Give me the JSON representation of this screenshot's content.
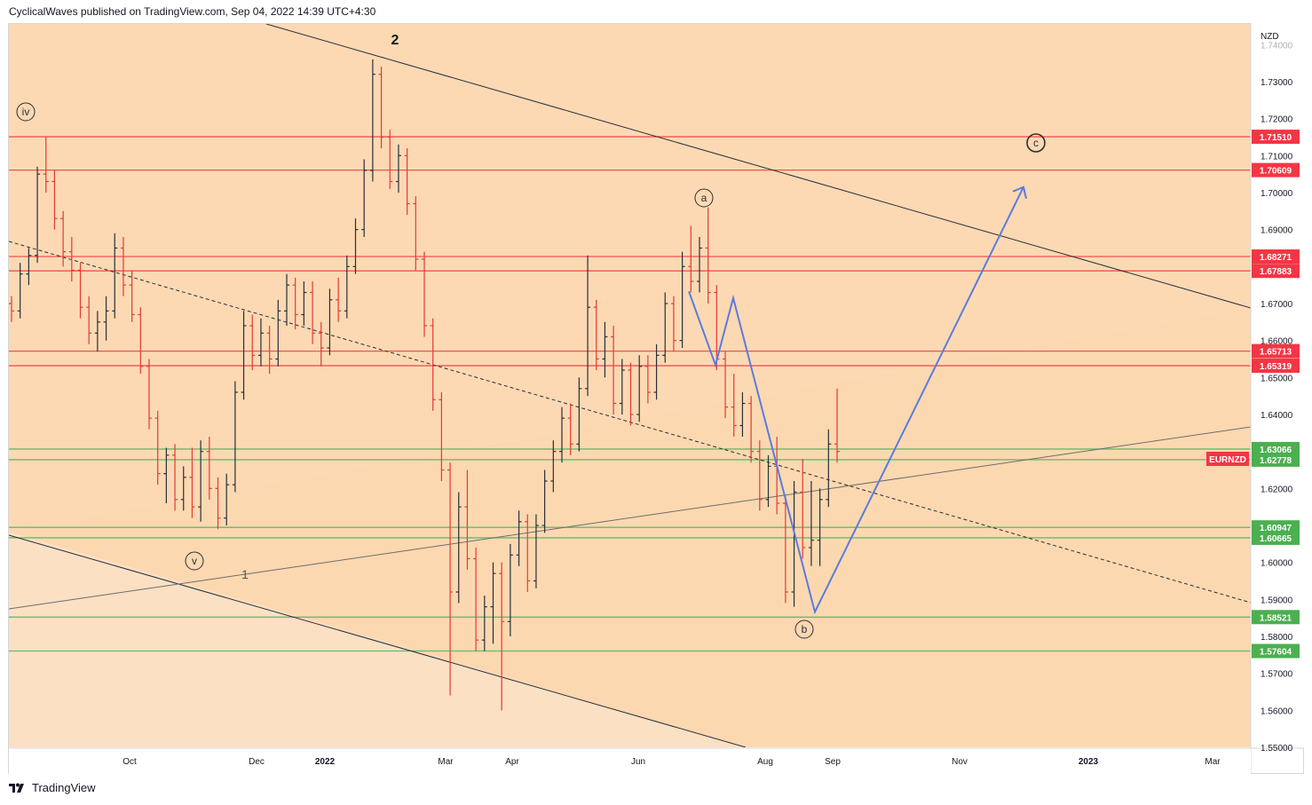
{
  "header": {
    "published": "CyclicalWaves published on TradingView.com, Sep 04, 2022 14:39 UTC+4:30"
  },
  "footer": {
    "brand": "TradingView",
    "logo_icon": "tradingview-logo-icon"
  },
  "chart_data": {
    "type": "ohlc",
    "symbol": "EURNZD",
    "currency": "NZD",
    "title": "",
    "xlabel": "",
    "ylabel": "",
    "ylim": [
      1.55,
      1.74
    ],
    "x_ticks": [
      "Oct",
      "Dec",
      "2022",
      "Mar",
      "Apr",
      "Jun",
      "Aug",
      "Sep",
      "Nov",
      "2023",
      "Mar"
    ],
    "y_ticks": [
      "1.74000",
      "1.73000",
      "1.72000",
      "1.71000",
      "1.70000",
      "1.69000",
      "1.68000",
      "1.67000",
      "1.66000",
      "1.65000",
      "1.64000",
      "1.63000",
      "1.62000",
      "1.61000",
      "1.60000",
      "1.59000",
      "1.58000",
      "1.57000",
      "1.56000",
      "1.55000"
    ],
    "colors": {
      "background": "#fcd9b3",
      "up_bar": "#2a2e39",
      "down_bar": "#e53935",
      "resistance": "#ef5350",
      "support": "#66bb6a",
      "projection": "#5b7be0"
    },
    "resistance_levels": [
      {
        "label": "1.71510",
        "value": 1.7151
      },
      {
        "label": "1.70609",
        "value": 1.70609
      },
      {
        "label": "1.68271",
        "value": 1.68271
      },
      {
        "label": "1.67883",
        "value": 1.67883
      },
      {
        "label": "1.65713",
        "value": 1.65713
      },
      {
        "label": "1.65319",
        "value": 1.65319
      }
    ],
    "support_levels": [
      {
        "label": "1.63066",
        "value": 1.63066
      },
      {
        "label": "1.62778",
        "value": 1.62778
      },
      {
        "label": "1.60947",
        "value": 1.60947
      },
      {
        "label": "1.60665",
        "value": 1.60665
      },
      {
        "label": "1.58521",
        "value": 1.58521
      },
      {
        "label": "1.57604",
        "value": 1.57604
      }
    ],
    "current_price_label": "EURNZD",
    "wave_labels": [
      {
        "text": "2",
        "style": "plain"
      },
      {
        "text": "iv",
        "style": "circle"
      },
      {
        "text": "v",
        "style": "circle"
      },
      {
        "text": "1",
        "style": "plain"
      },
      {
        "text": "a",
        "style": "circle"
      },
      {
        "text": "b",
        "style": "circle"
      },
      {
        "text": "c",
        "style": "circle-bold"
      }
    ],
    "projection_path": [
      1.6733,
      1.6534,
      1.6715,
      1.5866,
      1.7015
    ],
    "bars": [
      [
        1.67,
        1.672,
        1.665,
        1.668
      ],
      [
        1.668,
        1.681,
        1.666,
        1.678
      ],
      [
        1.678,
        1.685,
        1.675,
        1.683
      ],
      [
        1.683,
        1.707,
        1.681,
        1.705
      ],
      [
        1.705,
        1.715,
        1.7,
        1.703
      ],
      [
        1.703,
        1.706,
        1.69,
        1.693
      ],
      [
        1.693,
        1.695,
        1.68,
        1.684
      ],
      [
        1.684,
        1.688,
        1.676,
        1.679
      ],
      [
        1.679,
        1.681,
        1.666,
        1.669
      ],
      [
        1.669,
        1.672,
        1.659,
        1.662
      ],
      [
        1.662,
        1.668,
        1.657,
        1.665
      ],
      [
        1.665,
        1.672,
        1.66,
        1.668
      ],
      [
        1.668,
        1.689,
        1.666,
        1.685
      ],
      [
        1.685,
        1.688,
        1.672,
        1.675
      ],
      [
        1.675,
        1.679,
        1.665,
        1.667
      ],
      [
        1.667,
        1.669,
        1.651,
        1.653
      ],
      [
        1.653,
        1.655,
        1.636,
        1.639
      ],
      [
        1.639,
        1.641,
        1.621,
        1.624
      ],
      [
        1.624,
        1.631,
        1.616,
        1.629
      ],
      [
        1.629,
        1.632,
        1.614,
        1.617
      ],
      [
        1.617,
        1.626,
        1.614,
        1.623
      ],
      [
        1.623,
        1.631,
        1.612,
        1.615
      ],
      [
        1.615,
        1.633,
        1.611,
        1.63
      ],
      [
        1.63,
        1.634,
        1.617,
        1.62
      ],
      [
        1.62,
        1.623,
        1.609,
        1.612
      ],
      [
        1.612,
        1.624,
        1.61,
        1.621
      ],
      [
        1.621,
        1.649,
        1.619,
        1.646
      ],
      [
        1.646,
        1.668,
        1.644,
        1.664
      ],
      [
        1.664,
        1.667,
        1.652,
        1.656
      ],
      [
        1.656,
        1.666,
        1.653,
        1.662
      ],
      [
        1.662,
        1.664,
        1.651,
        1.655
      ],
      [
        1.655,
        1.671,
        1.653,
        1.668
      ],
      [
        1.668,
        1.678,
        1.664,
        1.675
      ],
      [
        1.675,
        1.677,
        1.663,
        1.667
      ],
      [
        1.667,
        1.676,
        1.664,
        1.673
      ],
      [
        1.673,
        1.676,
        1.659,
        1.662
      ],
      [
        1.662,
        1.665,
        1.653,
        1.658
      ],
      [
        1.658,
        1.674,
        1.656,
        1.671
      ],
      [
        1.671,
        1.677,
        1.665,
        1.668
      ],
      [
        1.668,
        1.683,
        1.666,
        1.68
      ],
      [
        1.68,
        1.693,
        1.678,
        1.69
      ],
      [
        1.69,
        1.709,
        1.688,
        1.706
      ],
      [
        1.706,
        1.736,
        1.703,
        1.732
      ],
      [
        1.732,
        1.734,
        1.712,
        1.715
      ],
      [
        1.715,
        1.717,
        1.701,
        1.703
      ],
      [
        1.703,
        1.713,
        1.7,
        1.71
      ],
      [
        1.71,
        1.712,
        1.694,
        1.697
      ],
      [
        1.697,
        1.699,
        1.679,
        1.682
      ],
      [
        1.682,
        1.684,
        1.661,
        1.664
      ],
      [
        1.664,
        1.666,
        1.641,
        1.644
      ],
      [
        1.644,
        1.646,
        1.622,
        1.625
      ],
      [
        1.625,
        1.627,
        1.564,
        1.592
      ],
      [
        1.592,
        1.619,
        1.589,
        1.615
      ],
      [
        1.615,
        1.625,
        1.598,
        1.601
      ],
      [
        1.601,
        1.604,
        1.576,
        1.579
      ],
      [
        1.579,
        1.591,
        1.576,
        1.588
      ],
      [
        1.588,
        1.6,
        1.578,
        1.597
      ],
      [
        1.597,
        1.6,
        1.56,
        1.584
      ],
      [
        1.584,
        1.605,
        1.58,
        1.602
      ],
      [
        1.602,
        1.614,
        1.599,
        1.611
      ],
      [
        1.611,
        1.613,
        1.592,
        1.595
      ],
      [
        1.595,
        1.613,
        1.593,
        1.61
      ],
      [
        1.61,
        1.625,
        1.608,
        1.622
      ],
      [
        1.622,
        1.633,
        1.619,
        1.63
      ],
      [
        1.63,
        1.642,
        1.627,
        1.639
      ],
      [
        1.639,
        1.643,
        1.629,
        1.632
      ],
      [
        1.632,
        1.65,
        1.63,
        1.647
      ],
      [
        1.647,
        1.683,
        1.645,
        1.669
      ],
      [
        1.669,
        1.671,
        1.652,
        1.655
      ],
      [
        1.655,
        1.665,
        1.65,
        1.661
      ],
      [
        1.661,
        1.664,
        1.64,
        1.643
      ],
      [
        1.643,
        1.655,
        1.64,
        1.652
      ],
      [
        1.652,
        1.654,
        1.637,
        1.64
      ],
      [
        1.64,
        1.656,
        1.638,
        1.653
      ],
      [
        1.653,
        1.656,
        1.643,
        1.646
      ],
      [
        1.646,
        1.659,
        1.644,
        1.656
      ],
      [
        1.656,
        1.673,
        1.654,
        1.67
      ],
      [
        1.67,
        1.672,
        1.657,
        1.66
      ],
      [
        1.66,
        1.684,
        1.658,
        1.68
      ],
      [
        1.68,
        1.691,
        1.673,
        1.676
      ],
      [
        1.676,
        1.688,
        1.673,
        1.685
      ],
      [
        1.685,
        1.696,
        1.67,
        1.673
      ],
      [
        1.673,
        1.675,
        1.652,
        1.655
      ],
      [
        1.655,
        1.657,
        1.639,
        1.642
      ],
      [
        1.642,
        1.651,
        1.634,
        1.637
      ],
      [
        1.637,
        1.646,
        1.634,
        1.643
      ],
      [
        1.643,
        1.645,
        1.627,
        1.63
      ],
      [
        1.63,
        1.633,
        1.614,
        1.617
      ],
      [
        1.617,
        1.629,
        1.615,
        1.626
      ],
      [
        1.626,
        1.634,
        1.613,
        1.616
      ],
      [
        1.616,
        1.618,
        1.589,
        1.592
      ],
      [
        1.592,
        1.622,
        1.588,
        1.619
      ],
      [
        1.619,
        1.628,
        1.601,
        1.604
      ],
      [
        1.604,
        1.622,
        1.599,
        1.606
      ],
      [
        1.606,
        1.62,
        1.599,
        1.617
      ],
      [
        1.617,
        1.636,
        1.615,
        1.632
      ],
      [
        1.632,
        1.647,
        1.627,
        1.63
      ]
    ]
  }
}
